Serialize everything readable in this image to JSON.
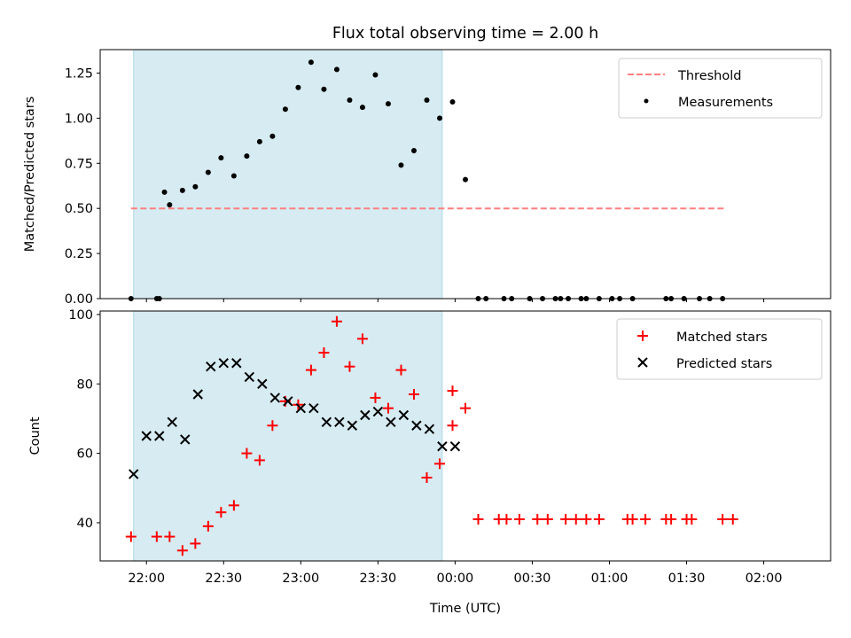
{
  "figure_title": "Flux total observing time = 2.00 h",
  "xlabel": "Time (UTC)",
  "x_tick_labels": [
    "22:00",
    "22:30",
    "23:00",
    "23:30",
    "00:00",
    "00:30",
    "01:00",
    "01:30",
    "02:00"
  ],
  "colors": {
    "shade": "#add8e6",
    "threshold": "#ff7f7f",
    "measurement": "#000000",
    "matched": "#ff0000",
    "predicted": "#000000"
  },
  "chart_data": [
    {
      "type": "scatter",
      "title": "Flux total observing time = 2.00 h",
      "xlabel": "",
      "ylabel": "Matched/Predicted stars",
      "x_unit": "minutes after 22:00 UTC",
      "xlim": [
        -18,
        266
      ],
      "ylim": [
        0,
        1.38
      ],
      "y_ticks": [
        0.0,
        0.25,
        0.5,
        0.75,
        1.0,
        1.25
      ],
      "y_tick_labels": [
        "0.00",
        "0.25",
        "0.50",
        "0.75",
        "1.00",
        "1.25"
      ],
      "shaded_interval": [
        -5,
        115
      ],
      "legend": {
        "position": "top-right",
        "entries": [
          "Threshold",
          "Measurements"
        ]
      },
      "threshold": {
        "name": "Threshold",
        "value": 0.5,
        "x_range": [
          -6,
          225
        ]
      },
      "series": [
        {
          "name": "Measurements",
          "x": [
            -6,
            4,
            5,
            7,
            9,
            14,
            19,
            24,
            29,
            34,
            39,
            44,
            49,
            54,
            59,
            64,
            69,
            74,
            79,
            84,
            89,
            94,
            99,
            104,
            109,
            114,
            119,
            124,
            129,
            132,
            139,
            142,
            149,
            154,
            159,
            161,
            164,
            169,
            171,
            176,
            181,
            184,
            189,
            202,
            204,
            209,
            215,
            219,
            224
          ],
          "y": [
            0,
            0,
            0,
            0.59,
            0.52,
            0.6,
            0.62,
            0.7,
            0.78,
            0.68,
            0.79,
            0.87,
            0.9,
            1.05,
            1.17,
            1.31,
            1.16,
            1.27,
            1.1,
            1.06,
            1.24,
            1.08,
            0.74,
            0.82,
            1.1,
            1.0,
            1.09,
            0.66,
            0,
            0,
            0,
            0,
            0,
            0,
            0,
            0,
            0,
            0,
            0,
            0,
            0,
            0,
            0,
            0,
            0,
            0,
            0,
            0,
            0
          ]
        }
      ]
    },
    {
      "type": "scatter",
      "title": "",
      "xlabel": "Time (UTC)",
      "ylabel": "Count",
      "x_unit": "minutes after 22:00 UTC",
      "xlim": [
        -18,
        266
      ],
      "ylim": [
        29,
        101
      ],
      "y_ticks": [
        40,
        60,
        80,
        100
      ],
      "y_tick_labels": [
        "40",
        "60",
        "80",
        "100"
      ],
      "shaded_interval": [
        -5,
        115
      ],
      "legend": {
        "position": "top-right",
        "entries": [
          "Matched stars",
          "Predicted stars"
        ]
      },
      "series": [
        {
          "name": "Matched stars",
          "marker": "+",
          "x": [
            -6,
            4,
            9,
            14,
            19,
            24,
            29,
            34,
            39,
            44,
            49,
            54,
            59,
            64,
            69,
            74,
            79,
            84,
            89,
            94,
            99,
            104,
            109,
            114,
            119,
            119,
            124,
            129,
            137,
            140,
            145,
            152,
            156,
            163,
            167,
            171,
            176,
            187,
            189,
            194,
            202,
            204,
            210,
            212,
            224,
            228
          ],
          "y": [
            36,
            36,
            36,
            32,
            34,
            39,
            43,
            45,
            60,
            58,
            68,
            75,
            74,
            84,
            89,
            98,
            85,
            93,
            76,
            73,
            84,
            77,
            53,
            57,
            78,
            68,
            73,
            41,
            41,
            41,
            41,
            41,
            41,
            41,
            41,
            41,
            41,
            41,
            41,
            41,
            41,
            41,
            41,
            41,
            41,
            41
          ]
        },
        {
          "name": "Predicted stars",
          "marker": "x",
          "x": [
            -5,
            0,
            5,
            10,
            15,
            20,
            25,
            30,
            35,
            40,
            45,
            50,
            55,
            60,
            65,
            70,
            75,
            80,
            85,
            90,
            95,
            100,
            105,
            110,
            115,
            120
          ],
          "y": [
            54,
            65,
            65,
            69,
            64,
            77,
            85,
            86,
            86,
            82,
            80,
            76,
            75,
            73,
            73,
            69,
            69,
            68,
            71,
            72,
            69,
            71,
            68,
            67,
            62,
            62
          ]
        }
      ]
    }
  ]
}
